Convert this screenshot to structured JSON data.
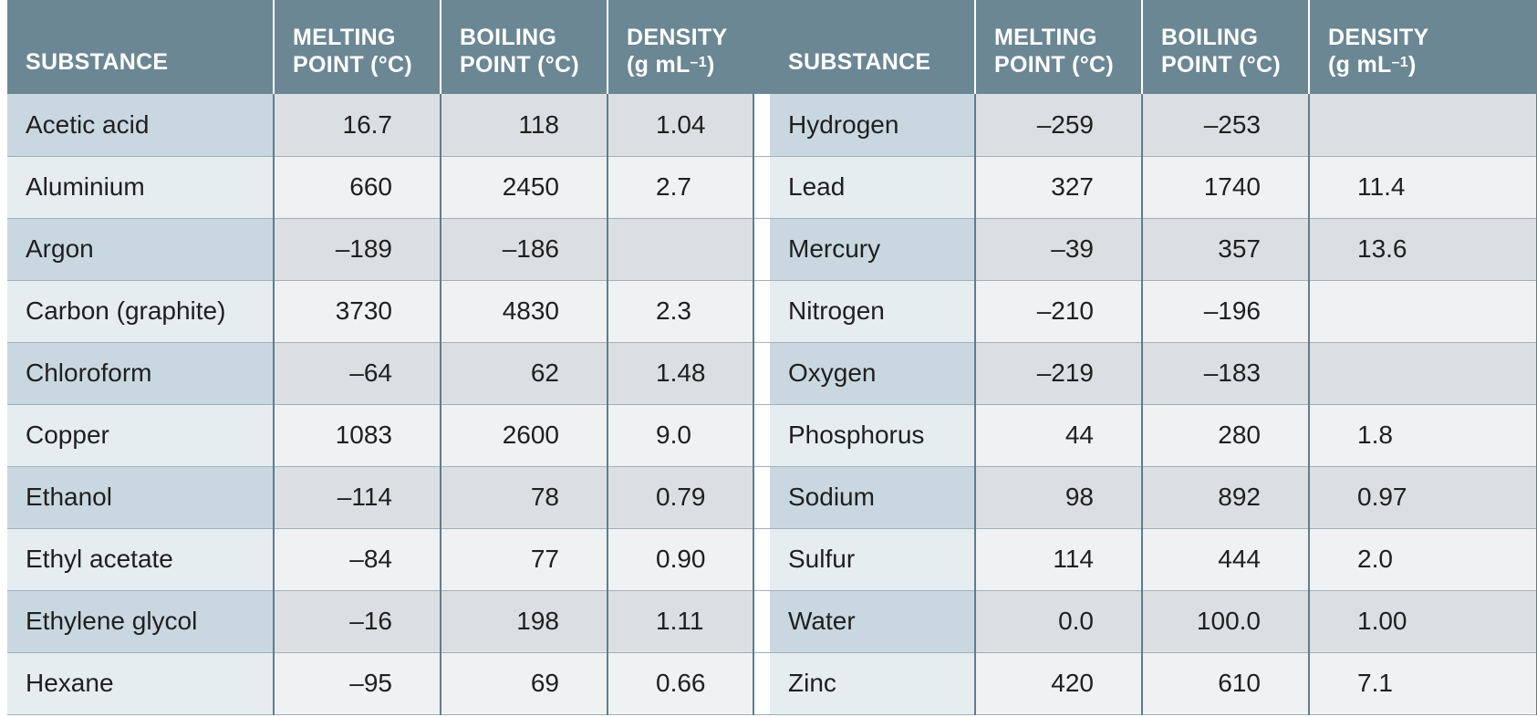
{
  "headers": {
    "substance": "SUBSTANCE",
    "melting_1": "MELTING",
    "melting_2": "POINT (°C)",
    "boiling_1": "BOILING",
    "boiling_2": "POINT (°C)",
    "density_1": "DENSITY",
    "density_2a": "(g mL",
    "density_exp": "–1",
    "density_2b": ")"
  },
  "left_rows": [
    {
      "substance": "Acetic acid",
      "melting": "16.7",
      "boiling": "118",
      "density": "1.04"
    },
    {
      "substance": "Aluminium",
      "melting": "660",
      "boiling": "2450",
      "density": "2.7"
    },
    {
      "substance": "Argon",
      "melting": "–189",
      "boiling": "–186",
      "density": ""
    },
    {
      "substance": "Carbon (graphite)",
      "melting": "3730",
      "boiling": "4830",
      "density": "2.3"
    },
    {
      "substance": "Chloroform",
      "melting": "–64",
      "boiling": "62",
      "density": "1.48"
    },
    {
      "substance": "Copper",
      "melting": "1083",
      "boiling": "2600",
      "density": "9.0"
    },
    {
      "substance": "Ethanol",
      "melting": "–114",
      "boiling": "78",
      "density": "0.79"
    },
    {
      "substance": "Ethyl acetate",
      "melting": "–84",
      "boiling": "77",
      "density": "0.90"
    },
    {
      "substance": "Ethylene glycol",
      "melting": "–16",
      "boiling": "198",
      "density": "1.11"
    },
    {
      "substance": "Hexane",
      "melting": "–95",
      "boiling": "69",
      "density": "0.66"
    }
  ],
  "right_rows": [
    {
      "substance": "Hydrogen",
      "melting": "–259",
      "boiling": "–253",
      "density": ""
    },
    {
      "substance": "Lead",
      "melting": "327",
      "boiling": "1740",
      "density": "11.4"
    },
    {
      "substance": "Mercury",
      "melting": "–39",
      "boiling": "357",
      "density": "13.6"
    },
    {
      "substance": "Nitrogen",
      "melting": "–210",
      "boiling": "–196",
      "density": ""
    },
    {
      "substance": "Oxygen",
      "melting": "–219",
      "boiling": "–183",
      "density": ""
    },
    {
      "substance": "Phosphorus",
      "melting": "44",
      "boiling": "280",
      "density": "1.8"
    },
    {
      "substance": "Sodium",
      "melting": "98",
      "boiling": "892",
      "density": "0.97"
    },
    {
      "substance": "Sulfur",
      "melting": "114",
      "boiling": "444",
      "density": "2.0"
    },
    {
      "substance": "Water",
      "melting": "0.0",
      "boiling": "100.0",
      "density": "1.00"
    },
    {
      "substance": "Zinc",
      "melting": "420",
      "boiling": "610",
      "density": "7.1"
    }
  ],
  "colors": {
    "header_bg": "#6b8794",
    "name_dark": "#c9d8e0",
    "name_light": "#e6edf1",
    "cell_dark": "#dcdfe1",
    "cell_light": "#eff1f2",
    "divider": "#5f7d8c"
  }
}
